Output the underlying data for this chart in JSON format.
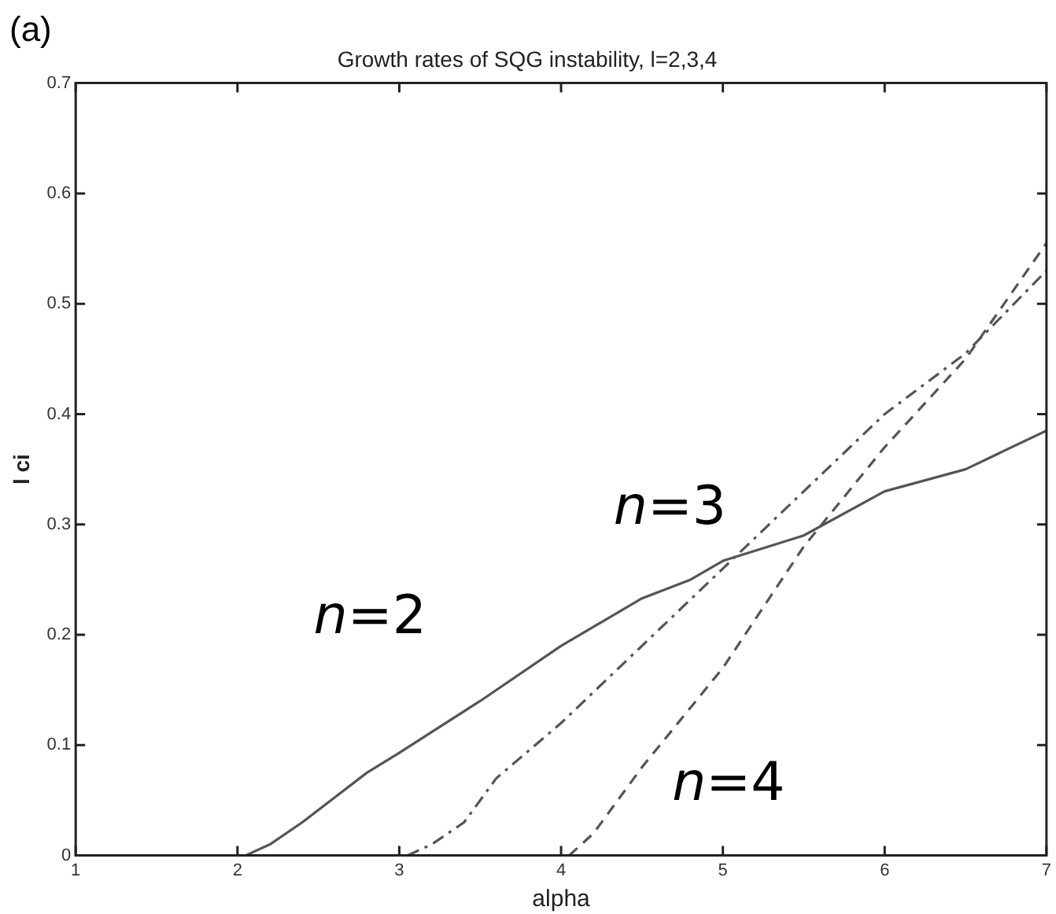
{
  "chart_data": {
    "type": "line",
    "title": "Growth rates of SQG instability, l=2,3,4",
    "xlabel": "alpha",
    "ylabel": "l ci",
    "x": [
      2.05,
      2.2,
      2.4,
      2.8,
      3,
      3.5,
      4,
      4.5,
      4.8,
      5,
      5.5,
      6,
      6.5,
      7
    ],
    "series": [
      {
        "name": "n=2",
        "values": [
          0,
          0.01,
          0.03,
          0.075,
          0.093,
          0.14,
          0.19,
          0.233,
          0.25,
          0.267,
          0.29,
          0.33,
          0.35,
          0.385
        ],
        "color": "#555555",
        "line_style": "solid"
      },
      {
        "name": "n=3",
        "x": [
          3.05,
          3.2,
          3.4,
          3.6,
          4,
          4.5,
          5,
          5.5,
          6,
          6.5,
          7
        ],
        "values": [
          0,
          0.01,
          0.03,
          0.07,
          0.12,
          0.19,
          0.26,
          0.33,
          0.4,
          0.455,
          0.53
        ],
        "color": "#555555",
        "line_style": "dashdot"
      },
      {
        "name": "n=4",
        "x": [
          4.05,
          4.2,
          4.5,
          5,
          5.5,
          6,
          6.5,
          7
        ],
        "values": [
          0,
          0.02,
          0.08,
          0.17,
          0.28,
          0.37,
          0.45,
          0.555
        ],
        "color": "#555555",
        "line_style": "dashed"
      }
    ],
    "xlim": [
      1,
      7
    ],
    "xticks": [
      1,
      2,
      3,
      4,
      5,
      6,
      7
    ],
    "ylim": [
      0,
      0.7
    ],
    "yticks": [
      0,
      0.1,
      0.2,
      0.3,
      0.4,
      0.5,
      0.6,
      0.7
    ],
    "grid": false,
    "legend": false,
    "marker": "none",
    "annotations": [
      "(a)"
    ]
  }
}
